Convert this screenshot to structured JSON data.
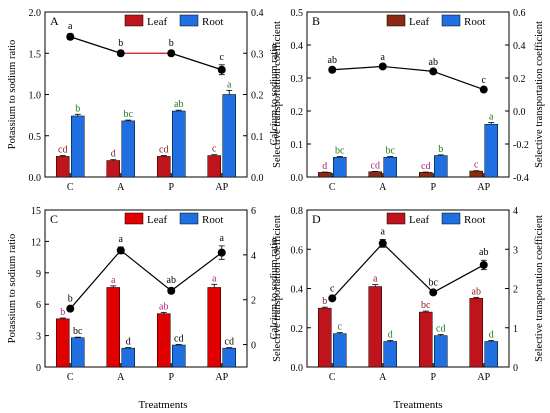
{
  "figure": {
    "xlabel": "Treatments"
  },
  "chart_data": [
    {
      "panel": "A",
      "type": "bar+line",
      "categories": [
        "C",
        "A",
        "P",
        "AP"
      ],
      "ylabel": "Potassium to sodium ratio",
      "y2label": "Selective transportation coefficient",
      "ylim": [
        0,
        2.0
      ],
      "yticks": [
        "0.0",
        "0.5",
        "1.0",
        "1.5",
        "2.0"
      ],
      "y2lim": [
        0,
        0.4
      ],
      "y2ticks": [
        "0.0",
        "0.1",
        "0.2",
        "0.3",
        "0.4"
      ],
      "legend_position": "top-right",
      "series": [
        {
          "name": "Leaf",
          "kind": "bar",
          "color": "#c0141c",
          "values": [
            0.25,
            0.2,
            0.25,
            0.26
          ],
          "errors": [
            0.01,
            0.01,
            0.01,
            0.01
          ],
          "labels": [
            "cd",
            "d",
            "cd",
            "c"
          ],
          "label_color": "#8b1a1a"
        },
        {
          "name": "Root",
          "kind": "bar",
          "color": "#1f6fe0",
          "values": [
            0.74,
            0.68,
            0.8,
            1.0
          ],
          "errors": [
            0.02,
            0.01,
            0.01,
            0.05
          ],
          "labels": [
            "b",
            "bc",
            "ab",
            "a"
          ],
          "label_color": "#1a7a1a"
        },
        {
          "name": "Selective transportation coefficient",
          "kind": "line",
          "axis": "right",
          "values": [
            0.34,
            0.3,
            0.3,
            0.26
          ],
          "errors": [
            0.007,
            0.005,
            0.005,
            0.012
          ],
          "labels": [
            "a",
            "b",
            "b",
            "c"
          ],
          "segment_colors": [
            "#000000",
            "#c0141c",
            "#000000"
          ]
        }
      ]
    },
    {
      "panel": "B",
      "type": "bar+line",
      "categories": [
        "C",
        "A",
        "P",
        "AP"
      ],
      "ylabel": "Calcium to sodium ratio",
      "y2label": "Selective transportation coefficient",
      "ylim": [
        0,
        0.5
      ],
      "yticks": [
        "0.0",
        "0.1",
        "0.2",
        "0.3",
        "0.4",
        "0.5"
      ],
      "y2lim": [
        -0.4,
        0.6
      ],
      "y2ticks": [
        "-0.4",
        "-0.2",
        "0.0",
        "0.2",
        "0.4",
        "0.6"
      ],
      "legend_position": "top-right",
      "series": [
        {
          "name": "Leaf",
          "kind": "bar",
          "color": "#8b2a10",
          "values": [
            0.014,
            0.016,
            0.014,
            0.018
          ],
          "errors": [
            0.001,
            0.001,
            0.001,
            0.001
          ],
          "labels": [
            "d",
            "cd",
            "cd",
            "c"
          ],
          "label_color": "#b0207a"
        },
        {
          "name": "Root",
          "kind": "bar",
          "color": "#1f6fe0",
          "values": [
            0.06,
            0.06,
            0.065,
            0.16
          ],
          "errors": [
            0.002,
            0.002,
            0.002,
            0.005
          ],
          "labels": [
            "bc",
            "bc",
            "b",
            "a"
          ],
          "label_color": "#1a7a1a"
        },
        {
          "name": "Selective transportation coefficient",
          "kind": "line",
          "axis": "right",
          "values": [
            0.25,
            0.27,
            0.24,
            0.13
          ],
          "errors": [
            0.01,
            0.01,
            0.01,
            0.01
          ],
          "labels": [
            "ab",
            "a",
            "ab",
            "c"
          ],
          "segment_colors": [
            "#000000",
            "#000000",
            "#000000"
          ]
        }
      ]
    },
    {
      "panel": "C",
      "type": "bar+line",
      "categories": [
        "C",
        "A",
        "P",
        "AP"
      ],
      "ylabel": "Potassium to sodium ratio",
      "y2label": "Selective transportation coefficient",
      "ylim": [
        0,
        15
      ],
      "yticks": [
        "0",
        "3",
        "6",
        "9",
        "12",
        "15"
      ],
      "y2lim": [
        -1,
        6
      ],
      "y2ticks": [
        "0",
        "2",
        "4",
        "6"
      ],
      "legend_position": "top-right",
      "series": [
        {
          "name": "Leaf",
          "kind": "bar",
          "color": "#e00000",
          "values": [
            4.6,
            7.6,
            5.1,
            7.6
          ],
          "errors": [
            0.08,
            0.15,
            0.12,
            0.3
          ],
          "labels": [
            "b",
            "a",
            "ab",
            "a"
          ],
          "label_color": "#b0207a"
        },
        {
          "name": "Root",
          "kind": "bar",
          "color": "#1f6fe0",
          "values": [
            2.8,
            1.8,
            2.1,
            1.8
          ],
          "errors": [
            0.05,
            0.05,
            0.05,
            0.05
          ],
          "labels": [
            "bc",
            "d",
            "cd",
            "cd"
          ],
          "label_color": "#000000"
        },
        {
          "name": "Selective transportation coefficient",
          "kind": "line",
          "axis": "right",
          "values": [
            1.6,
            4.2,
            2.4,
            4.1
          ],
          "errors": [
            0.1,
            0.15,
            0.12,
            0.3
          ],
          "labels": [
            "b",
            "a",
            "ab",
            "a"
          ],
          "segment_colors": [
            "#000000",
            "#000000",
            "#000000"
          ]
        }
      ]
    },
    {
      "panel": "D",
      "type": "bar+line",
      "categories": [
        "C",
        "A",
        "P",
        "AP"
      ],
      "ylabel": "Calcium to sodium ratio",
      "y2label": "Selective transportation coefficient",
      "ylim": [
        0,
        0.8
      ],
      "yticks": [
        "0.0",
        "0.2",
        "0.4",
        "0.6",
        "0.8"
      ],
      "y2lim": [
        0,
        4
      ],
      "y2ticks": [
        "0",
        "1",
        "2",
        "3",
        "4"
      ],
      "legend_position": "top-right",
      "series": [
        {
          "name": "Leaf",
          "kind": "bar",
          "color": "#c0141c",
          "values": [
            0.3,
            0.41,
            0.28,
            0.35
          ],
          "errors": [
            0.005,
            0.01,
            0.005,
            0.005
          ],
          "labels": [
            "b",
            "a",
            "bc",
            "ab"
          ],
          "label_color": "#8b1a1a"
        },
        {
          "name": "Root",
          "kind": "bar",
          "color": "#1f6fe0",
          "values": [
            0.17,
            0.13,
            0.16,
            0.13
          ],
          "errors": [
            0.005,
            0.005,
            0.005,
            0.005
          ],
          "labels": [
            "c",
            "d",
            "cd",
            "d"
          ],
          "label_color": "#1a7a1a"
        },
        {
          "name": "Selective transportation coefficient",
          "kind": "line",
          "axis": "right",
          "values": [
            1.75,
            3.15,
            1.9,
            2.6
          ],
          "errors": [
            0.05,
            0.1,
            0.05,
            0.12
          ],
          "labels": [
            "c",
            "a",
            "bc",
            "ab"
          ],
          "segment_colors": [
            "#000000",
            "#000000",
            "#000000"
          ]
        }
      ]
    }
  ]
}
